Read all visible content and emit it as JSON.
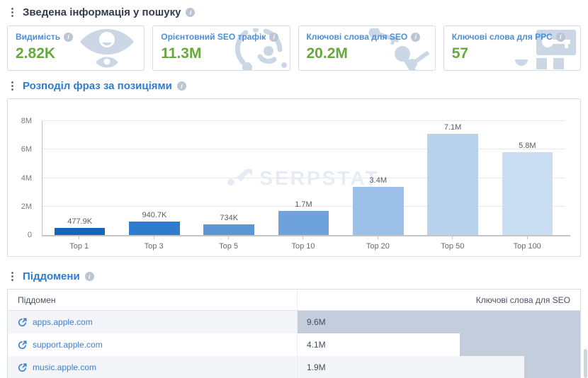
{
  "icons": {
    "info": "i",
    "drag": "⋮"
  },
  "summary": {
    "title": "Зведена інформація у пошуку",
    "cards": [
      {
        "label": "Видимість",
        "value": "2.82K",
        "icon": "eye-icon"
      },
      {
        "label": "Орієнтовний SEO трафік",
        "value": "11.3M",
        "icon": "orbit-icon"
      },
      {
        "label": "Ключові слова для SEO",
        "value": "20.2M",
        "icon": "keys-icon"
      },
      {
        "label": "Ключові слова для PPC",
        "value": "57",
        "icon": "key-card-icon"
      }
    ]
  },
  "positions": {
    "title": "Розподіл фраз за позиціями"
  },
  "watermark": "SERPSTAT",
  "chart_data": {
    "type": "bar",
    "title": "Розподіл фраз за позиціями",
    "categories": [
      "Top 1",
      "Top 3",
      "Top 5",
      "Top 10",
      "Top 20",
      "Top 50",
      "Top 100"
    ],
    "values": [
      477900,
      940700,
      734000,
      1700000,
      3400000,
      7100000,
      5800000
    ],
    "value_labels": [
      "477.9K",
      "940.7K",
      "734K",
      "1.7M",
      "3.4M",
      "7.1M",
      "5.8M"
    ],
    "xlabel": "",
    "ylabel": "",
    "ylim": [
      0,
      8000000
    ],
    "ytick_labels": [
      "0",
      "2M",
      "4M",
      "6M",
      "8M"
    ],
    "grid": true,
    "legend": "none",
    "bar_colors": [
      "#1565b8",
      "#2e7cd0",
      "#5b96d6",
      "#6da2dc",
      "#9dc0e9",
      "#b8d2ee",
      "#c9ddf3"
    ]
  },
  "subdomains": {
    "title": "Піддомени",
    "columns": {
      "subdomain": "Піддомен",
      "seo_keywords": "Ключові слова для SEO"
    },
    "rows": [
      {
        "subdomain": "apps.apple.com",
        "seo_keywords": "9.6M",
        "bar_fraction": 1.0
      },
      {
        "subdomain": "support.apple.com",
        "seo_keywords": "4.1M",
        "bar_fraction": 0.427
      },
      {
        "subdomain": "music.apple.com",
        "seo_keywords": "1.9M",
        "bar_fraction": 0.198
      }
    ]
  },
  "colors": {
    "accent_blue": "#2f7cd1",
    "link_blue": "#3a7fd5",
    "value_green": "#67a93c",
    "icon_light": "#ccd7e6",
    "table_bar": "#c4cddb",
    "row_stripe": "#f3f5f9",
    "watermark": "#e7ecf4"
  }
}
